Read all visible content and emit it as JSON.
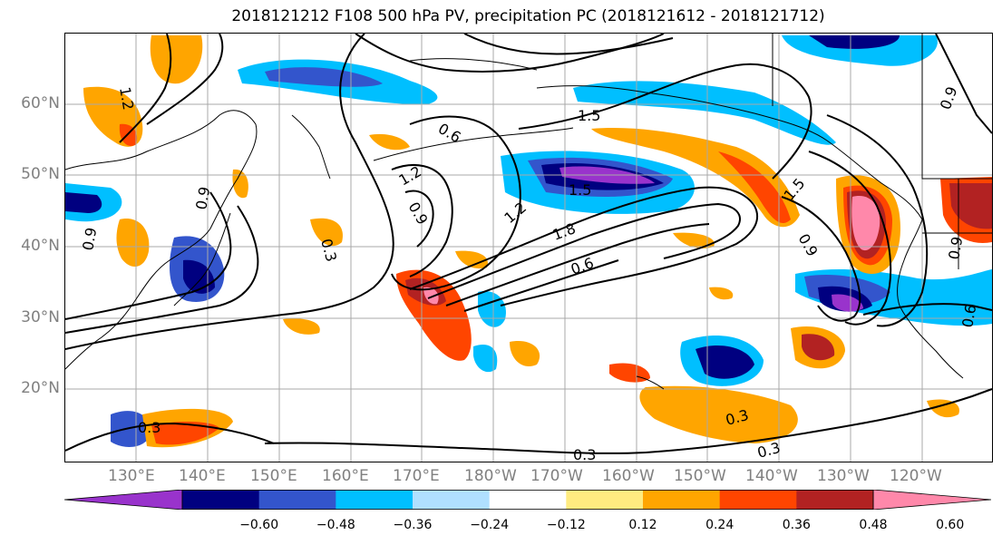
{
  "title": "2018121212 F108 500 hPa PV, precipitation PC (2018121612 - 2018121712)",
  "map": {
    "lat_ticks": [
      "60°N",
      "50°N",
      "40°N",
      "30°N",
      "20°N"
    ],
    "lon_ticks": [
      "130°E",
      "140°E",
      "150°E",
      "160°E",
      "170°E",
      "180°W",
      "170°W",
      "160°W",
      "150°W",
      "140°W",
      "130°W",
      "120°W"
    ],
    "pv_contour_labels": [
      "1.2",
      "1.5",
      "0.6",
      "0.9",
      "1.2",
      "1.5",
      "1.8",
      "0.6",
      "1.2",
      "0.9",
      "0.3",
      "0.9",
      "0.3",
      "0.3",
      "0.3",
      "0.3",
      "0.9",
      "0.6",
      "0.9",
      "0.9",
      "1.5"
    ]
  },
  "colorbar": {
    "tick_labels": [
      "−0.60",
      "−0.48",
      "−0.36",
      "−0.24",
      "−0.12",
      "0.12",
      "0.24",
      "0.36",
      "0.48",
      "0.60"
    ],
    "colors": [
      "#9933cc",
      "#000080",
      "#3355cc",
      "#00bfff",
      "#b0e0ff",
      "#ffffff",
      "#ffeb80",
      "#ffa500",
      "#ff4500",
      "#b22222",
      "#ff88aa"
    ]
  }
}
